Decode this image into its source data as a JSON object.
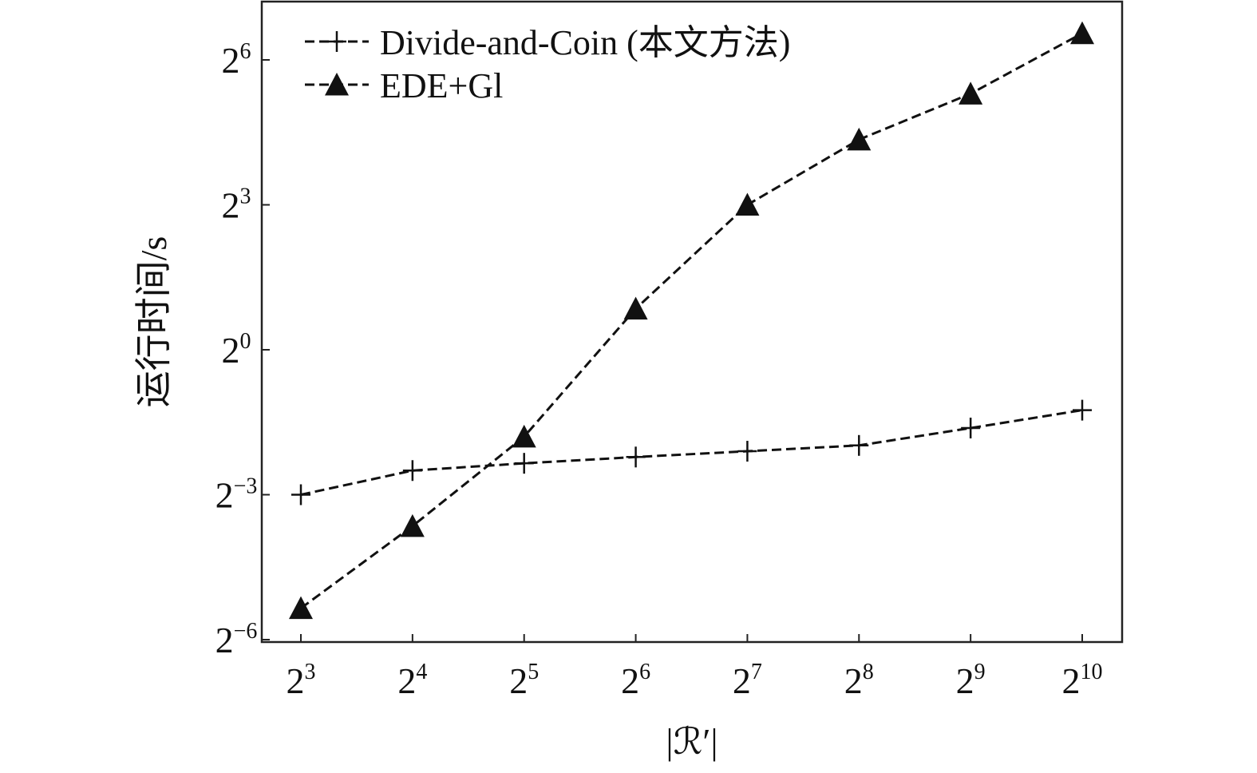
{
  "chart_data": {
    "type": "line",
    "xlabel": "|ℛ′|",
    "ylabel": "运行时间/s",
    "x": [
      3,
      4,
      5,
      6,
      7,
      8,
      9,
      10
    ],
    "x_tick_labels": [
      {
        "base": "2",
        "exp": "3"
      },
      {
        "base": "2",
        "exp": "4"
      },
      {
        "base": "2",
        "exp": "5"
      },
      {
        "base": "2",
        "exp": "6"
      },
      {
        "base": "2",
        "exp": "7"
      },
      {
        "base": "2",
        "exp": "8"
      },
      {
        "base": "2",
        "exp": "9"
      },
      {
        "base": "2",
        "exp": "10"
      }
    ],
    "y_scale": "log2",
    "y_ticks": [
      -6,
      -3,
      0,
      3,
      6
    ],
    "y_tick_labels": [
      {
        "base": "2",
        "exp": "−6"
      },
      {
        "base": "2",
        "exp": "−3"
      },
      {
        "base": "2",
        "exp": "0"
      },
      {
        "base": "2",
        "exp": "3"
      },
      {
        "base": "2",
        "exp": "6"
      }
    ],
    "xlim": [
      2.65,
      10.35
    ],
    "ylim": [
      -6.0,
      7.2
    ],
    "grid": false,
    "legend_position": "top-left",
    "series": [
      {
        "name": "Divide-and-Coin (本文方法)",
        "marker": "plus",
        "line_style": "dashed",
        "color": "#111111",
        "y_log2": [
          -3.0,
          -2.5,
          -2.35,
          -2.22,
          -2.1,
          -1.98,
          -1.62,
          -1.25
        ]
      },
      {
        "name": "EDE+Gl",
        "marker": "triangle",
        "line_style": "dashed",
        "color": "#111111",
        "y_log2": [
          -5.35,
          -3.65,
          -1.8,
          0.85,
          3.0,
          4.35,
          5.3,
          6.55
        ]
      }
    ]
  }
}
